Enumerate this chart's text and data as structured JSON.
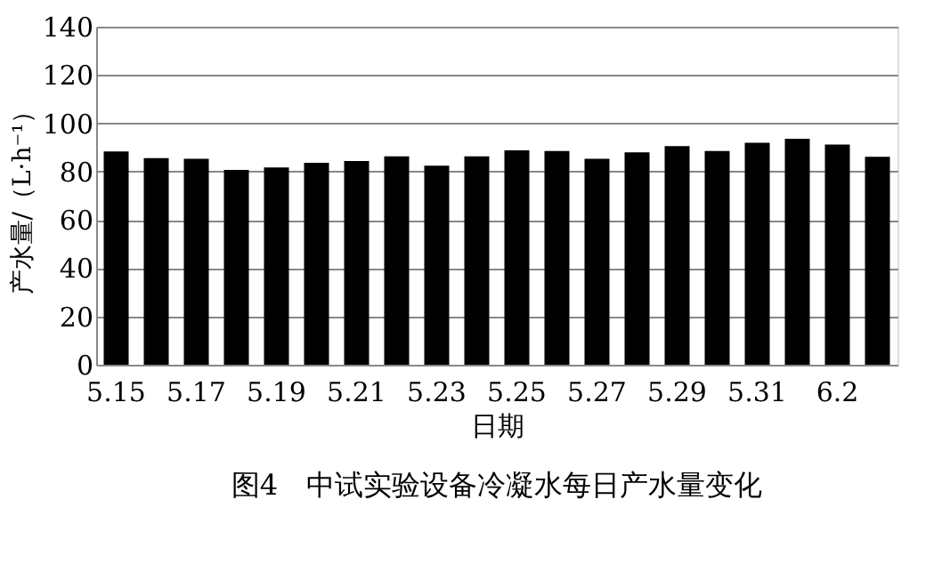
{
  "chart_data": {
    "type": "bar",
    "title": "图4　中试实验设备冷凝水每日产水量变化",
    "xlabel": "日期",
    "ylabel": "产水量/（L·h⁻¹）",
    "categories": [
      "5.15",
      null,
      "5.17",
      null,
      "5.19",
      null,
      "5.21",
      null,
      "5.23",
      null,
      "5.25",
      null,
      "5.27",
      null,
      "5.29",
      null,
      "5.31",
      null,
      "6.2",
      null
    ],
    "values": [
      88.3,
      85.6,
      85.3,
      80.7,
      81.7,
      83.6,
      84.4,
      86.3,
      82.4,
      86.3,
      88.8,
      88.5,
      85.3,
      88.0,
      90.5,
      88.5,
      91.9,
      93.6,
      91.2,
      86.1
    ],
    "color": "#000000",
    "ylim": [
      0,
      140
    ],
    "yticks": [
      0,
      20,
      40,
      60,
      80,
      100,
      120,
      140
    ],
    "grid": "y"
  }
}
